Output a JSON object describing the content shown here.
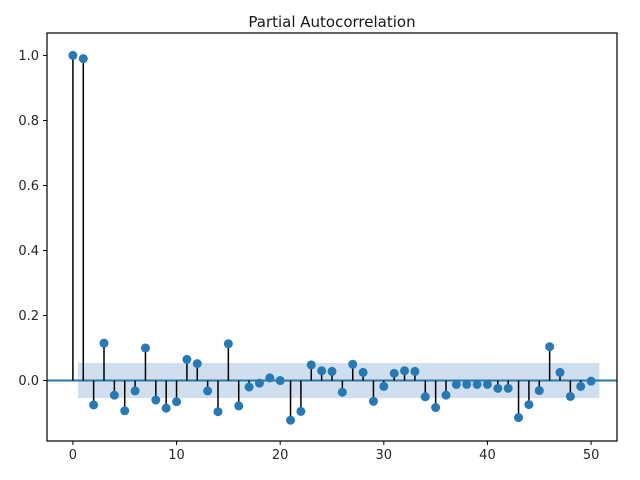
{
  "figure": {
    "background_color": "#ffffff"
  },
  "chart_data": {
    "type": "stem",
    "title": "Partial Autocorrelation",
    "xlabel": "",
    "ylabel": "",
    "grid": false,
    "legend": null,
    "x": [
      0,
      1,
      2,
      3,
      4,
      5,
      6,
      7,
      8,
      9,
      10,
      11,
      12,
      13,
      14,
      15,
      16,
      17,
      18,
      19,
      20,
      21,
      22,
      23,
      24,
      25,
      26,
      27,
      28,
      29,
      30,
      31,
      32,
      33,
      34,
      35,
      36,
      37,
      38,
      39,
      40,
      41,
      42,
      43,
      44,
      45,
      46,
      47,
      48,
      49,
      50
    ],
    "values": [
      1.0,
      0.99,
      -0.075,
      0.115,
      -0.045,
      -0.093,
      -0.032,
      0.1,
      -0.06,
      -0.085,
      -0.065,
      0.065,
      0.052,
      -0.032,
      -0.096,
      0.113,
      -0.078,
      -0.02,
      -0.008,
      0.008,
      0.0,
      -0.122,
      -0.095,
      0.048,
      0.03,
      0.028,
      -0.036,
      0.05,
      0.025,
      -0.064,
      -0.018,
      0.022,
      0.03,
      0.028,
      -0.05,
      -0.083,
      -0.045,
      -0.012,
      -0.012,
      -0.012,
      -0.012,
      -0.024,
      -0.024,
      -0.114,
      -0.074,
      -0.031,
      0.104,
      0.025,
      -0.049,
      -0.018,
      -0.002
    ],
    "xlim": [
      -2.5,
      52.5
    ],
    "ylim": [
      -0.186,
      1.069
    ],
    "xtick_values": [
      0,
      10,
      20,
      30,
      40,
      50
    ],
    "xtick_labels": [
      "0",
      "10",
      "20",
      "30",
      "40",
      "50"
    ],
    "ytick_values": [
      0.0,
      0.2,
      0.4,
      0.6,
      0.8,
      1.0
    ],
    "ytick_labels": [
      "0.0",
      "0.2",
      "0.4",
      "0.6",
      "0.8",
      "1.0"
    ],
    "zero_line_y": 0.0,
    "confidence_band": {
      "lower": -0.054,
      "upper": 0.054,
      "x_start": 0.5,
      "x_end": 50.8
    },
    "colors": {
      "marker": "#2878b4",
      "stem": "#000000",
      "band": "#cfdfee",
      "zero_line": "#2e75a8",
      "spine": "#000000",
      "tick": "#262626",
      "title": "#171717",
      "background": "#ffffff"
    }
  }
}
